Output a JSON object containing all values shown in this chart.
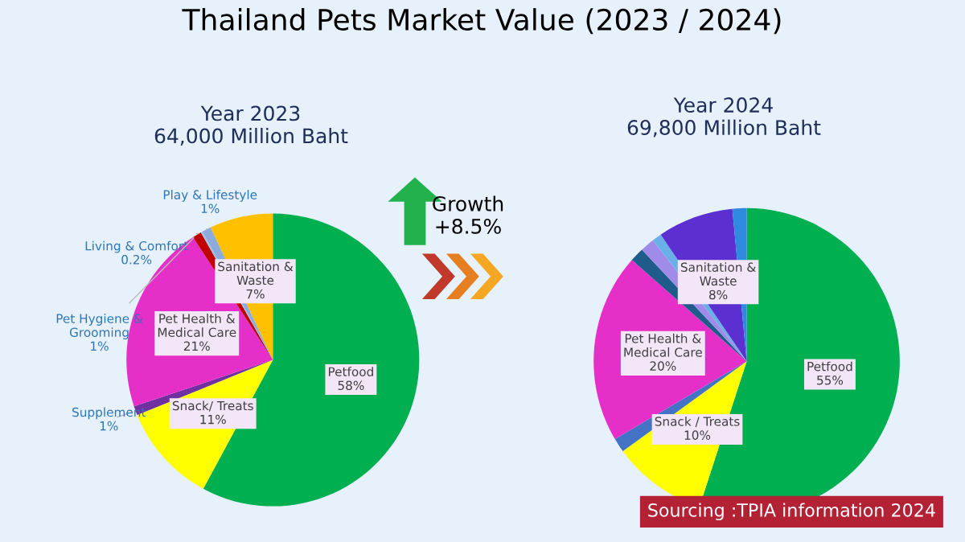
{
  "chart_data": [
    {
      "type": "pie",
      "title": "Thailand Pets Market Value (2023 / 2024)",
      "subtitle": "Year 2023\n64,000 Million Baht",
      "categories": [
        "Petfood",
        "Snack/ Treats",
        "Supplement",
        "Pet Health & Medical Care",
        "Pet Hygiene & Grooming",
        "Living & Comfort",
        "Play & Lifestyle",
        "Sanitation & Waste"
      ],
      "values": [
        58,
        11,
        1,
        21,
        1,
        0.2,
        1,
        7
      ],
      "value_labels": [
        "58%",
        "11%",
        "1%",
        "21%",
        "1%",
        "0.2%",
        "1%",
        "7%"
      ],
      "colors": [
        "#00b050",
        "#ffff00",
        "#7030a0",
        "#e62ec8",
        "#c00000",
        "#9dc3e6",
        "#8faadc",
        "#ffc000"
      ],
      "annotations": [
        "Growth\n+8.5%"
      ]
    },
    {
      "type": "pie",
      "subtitle": "Year 2024\n69,800 Million Baht",
      "categories": [
        "Petfood",
        "Snack / Treats",
        null,
        "Pet Health & Medical Care",
        null,
        null,
        null,
        "Sanitation & Waste",
        null
      ],
      "values": [
        55,
        10,
        1.5,
        20,
        1.5,
        1.5,
        1,
        8,
        1.5
      ],
      "value_labels": [
        "55%",
        "10%",
        null,
        "20%",
        null,
        null,
        null,
        "8%",
        null
      ],
      "colors": [
        "#00b050",
        "#ffff00",
        "#4472c4",
        "#e62ec8",
        "#1f5c8c",
        "#a08ce8",
        "#6ab0e8",
        "#5b2fd0",
        "#2e8be0"
      ],
      "annotations": [
        "Sourcing :TPIA information 2024"
      ]
    }
  ]
}
